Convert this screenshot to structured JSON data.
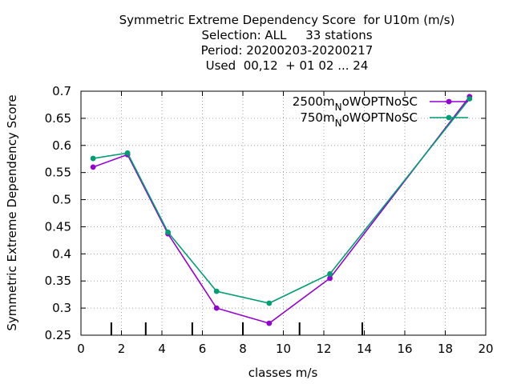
{
  "chart_data": {
    "type": "line",
    "title": "Symmetric Extreme Dependency Score  for U10m (m/s)",
    "subtitle_lines": [
      "Selection: ALL     33 stations",
      "Period: 20200203-20200217",
      "Used  00,12  + 01 02 ... 24"
    ],
    "xlabel": "classes m/s",
    "ylabel": "Symmetric Extreme Dependency Score",
    "xlim": [
      0,
      20
    ],
    "ylim": [
      0.25,
      0.7
    ],
    "xticks": [
      "0",
      "2",
      "4",
      "6",
      "8",
      "10",
      "12",
      "14",
      "16",
      "18",
      "20"
    ],
    "yticks": [
      "0.25",
      "0.3",
      "0.35",
      "0.4",
      "0.45",
      "0.5",
      "0.55",
      "0.6",
      "0.65",
      "0.7"
    ],
    "grid": true,
    "legend_position": "top-right",
    "class_boundaries": [
      1.5,
      3.2,
      5.5,
      8.0,
      10.8,
      13.9
    ],
    "series": [
      {
        "name_main": "2500m",
        "name_sub": "N",
        "name_rest": "oWOPTNoSC",
        "color": "#9400d3",
        "marker": "circle",
        "x": [
          0.6,
          2.3,
          4.3,
          6.7,
          9.3,
          12.3,
          19.2
        ],
        "y": [
          0.56,
          0.583,
          0.437,
          0.3,
          0.272,
          0.355,
          0.69
        ]
      },
      {
        "name_main": "750m",
        "name_sub": "N",
        "name_rest": "oWOPTNoSC",
        "color": "#009e73",
        "marker": "circle",
        "x": [
          0.6,
          2.3,
          4.3,
          6.7,
          9.3,
          12.3,
          19.2
        ],
        "y": [
          0.576,
          0.586,
          0.44,
          0.331,
          0.309,
          0.363,
          0.686
        ]
      }
    ]
  }
}
